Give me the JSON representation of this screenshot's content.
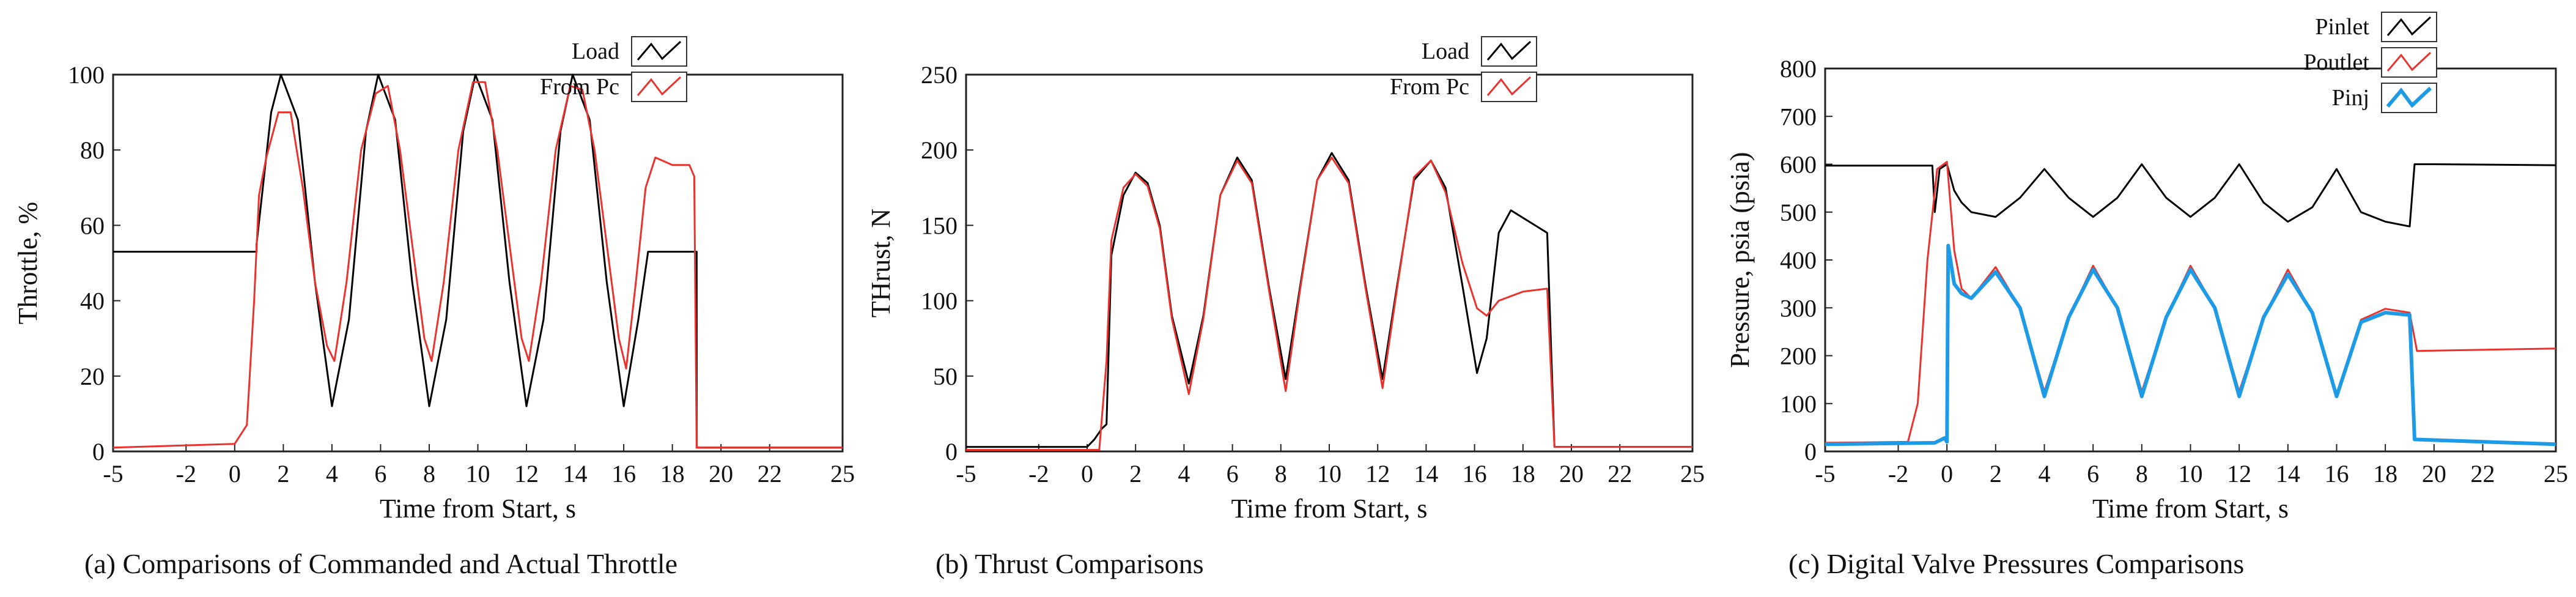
{
  "chart_data": [
    {
      "type": "line",
      "panel": "a",
      "caption": "(a) Comparisons of Commanded and Actual Throttle",
      "xlabel": "Time from  Start, s",
      "ylabel": "Throttle, %",
      "xlim": [
        -5,
        25
      ],
      "ylim": [
        0,
        100
      ],
      "xticks": [
        -5,
        -2,
        0,
        2,
        4,
        6,
        8,
        10,
        12,
        14,
        16,
        18,
        20,
        22,
        25
      ],
      "yticks": [
        0,
        20,
        40,
        60,
        80,
        100
      ],
      "legend_position": "top-right",
      "grid": false,
      "series": [
        {
          "name": "Load",
          "color": "#000000",
          "x": [
            -5,
            0.9,
            0.9,
            1.5,
            1.9,
            2.6,
            3.3,
            4.0,
            4.7,
            5.4,
            5.9,
            6.6,
            7.3,
            8.0,
            8.7,
            9.4,
            9.9,
            10.6,
            11.3,
            12.0,
            12.7,
            13.4,
            13.9,
            14.6,
            15.3,
            16.0,
            16.6,
            17.0,
            17.0,
            19.0,
            19.0,
            25
          ],
          "y": [
            53,
            53,
            55,
            90,
            100,
            88,
            45,
            12,
            35,
            85,
            100,
            88,
            45,
            12,
            35,
            85,
            100,
            88,
            45,
            12,
            35,
            85,
            100,
            88,
            45,
            12,
            35,
            53,
            53,
            53,
            1,
            1
          ]
        },
        {
          "name": "From Pc",
          "color": "#e8332f",
          "x": [
            -5,
            0.0,
            0.5,
            0.8,
            1.0,
            1.3,
            1.8,
            2.3,
            2.8,
            3.3,
            3.8,
            4.1,
            4.6,
            5.2,
            5.8,
            6.3,
            6.8,
            7.3,
            7.8,
            8.1,
            8.6,
            9.2,
            9.8,
            10.3,
            10.8,
            11.3,
            11.8,
            12.1,
            12.6,
            13.2,
            13.8,
            14.3,
            14.8,
            15.3,
            15.8,
            16.1,
            16.5,
            16.9,
            17.3,
            18.0,
            18.7,
            18.9,
            19.0,
            25
          ],
          "y": [
            1,
            2,
            7,
            40,
            68,
            78,
            90,
            90,
            70,
            45,
            28,
            24,
            45,
            80,
            95,
            97,
            80,
            55,
            30,
            24,
            45,
            80,
            98,
            98,
            80,
            55,
            30,
            24,
            45,
            80,
            97,
            96,
            80,
            55,
            30,
            22,
            45,
            70,
            78,
            76,
            76,
            73,
            1,
            1
          ]
        }
      ]
    },
    {
      "type": "line",
      "panel": "b",
      "caption": "(b) Thrust Comparisons",
      "xlabel": "Time from  Start, s",
      "ylabel": "THrust, N",
      "xlim": [
        -5,
        25
      ],
      "ylim": [
        0,
        250
      ],
      "xticks": [
        -5,
        -2,
        0,
        2,
        4,
        6,
        8,
        10,
        12,
        14,
        16,
        18,
        20,
        22,
        25
      ],
      "yticks": [
        0,
        50,
        100,
        150,
        200,
        250
      ],
      "legend_position": "top-right",
      "grid": false,
      "series": [
        {
          "name": "Load",
          "color": "#000000",
          "x": [
            -5,
            0.0,
            0.3,
            0.6,
            0.8,
            1.0,
            1.5,
            2.0,
            2.5,
            3.0,
            3.5,
            4.2,
            4.8,
            5.5,
            6.2,
            6.8,
            7.5,
            8.2,
            8.8,
            9.5,
            10.1,
            10.8,
            11.5,
            12.2,
            12.8,
            13.5,
            14.2,
            14.8,
            15.5,
            16.1,
            16.5,
            17.0,
            17.5,
            18.5,
            19.0,
            19.3,
            25
          ],
          "y": [
            3,
            3,
            8,
            15,
            18,
            130,
            170,
            185,
            178,
            150,
            90,
            45,
            90,
            170,
            195,
            180,
            110,
            48,
            110,
            180,
            198,
            180,
            110,
            48,
            110,
            180,
            193,
            175,
            110,
            52,
            75,
            145,
            160,
            150,
            145,
            3,
            3
          ]
        },
        {
          "name": "From Pc",
          "color": "#e8332f",
          "x": [
            -5,
            0.5,
            0.8,
            1.0,
            1.5,
            2.0,
            2.5,
            3.0,
            3.5,
            4.2,
            4.8,
            5.5,
            6.2,
            6.8,
            7.5,
            8.2,
            8.8,
            9.5,
            10.1,
            10.8,
            11.5,
            12.2,
            12.8,
            13.5,
            14.2,
            14.8,
            15.5,
            16.1,
            16.5,
            17.0,
            18.0,
            19.0,
            19.3,
            25
          ],
          "y": [
            1,
            1,
            60,
            140,
            175,
            184,
            176,
            148,
            88,
            38,
            88,
            170,
            193,
            178,
            108,
            40,
            108,
            180,
            195,
            178,
            108,
            42,
            108,
            182,
            193,
            172,
            125,
            95,
            90,
            100,
            106,
            108,
            3,
            3
          ]
        }
      ]
    },
    {
      "type": "line",
      "panel": "c",
      "caption": "(c) Digital Valve Pressures Comparisons",
      "xlabel": "Time from  Start, s",
      "ylabel": "Pressure, psia (psia)",
      "xlim": [
        -5,
        25
      ],
      "ylim": [
        0,
        800
      ],
      "xticks": [
        -5,
        -2,
        0,
        2,
        4,
        6,
        8,
        10,
        12,
        14,
        16,
        18,
        20,
        22,
        25
      ],
      "yticks": [
        0,
        100,
        200,
        300,
        400,
        500,
        600,
        700,
        800
      ],
      "legend_position": "top-right",
      "grid": false,
      "series": [
        {
          "name": "Pinlet",
          "color": "#000000",
          "x": [
            -5,
            -0.6,
            -0.5,
            -0.3,
            0.0,
            0.3,
            0.6,
            1.0,
            2.0,
            3.0,
            4.0,
            5.0,
            6.0,
            7.0,
            8.0,
            9.0,
            10.0,
            11.0,
            12.0,
            13.0,
            14.0,
            15.0,
            16.0,
            17.0,
            18.0,
            19.0,
            19.2,
            20.0,
            25
          ],
          "y": [
            597,
            597,
            500,
            590,
            600,
            545,
            520,
            500,
            490,
            530,
            590,
            530,
            490,
            530,
            600,
            530,
            490,
            530,
            600,
            520,
            480,
            510,
            590,
            500,
            480,
            470,
            600,
            600,
            598
          ]
        },
        {
          "name": "Poutlet",
          "color": "#e8332f",
          "x": [
            -5,
            -1.6,
            -1.2,
            -0.8,
            -0.4,
            0.0,
            0.3,
            0.6,
            1.0,
            2.0,
            3.0,
            4.0,
            5.0,
            6.0,
            7.0,
            8.0,
            9.0,
            10.0,
            11.0,
            12.0,
            13.0,
            14.0,
            15.0,
            16.0,
            17.0,
            18.0,
            19.0,
            19.3,
            25
          ],
          "y": [
            18,
            20,
            100,
            400,
            590,
            605,
            420,
            340,
            320,
            385,
            300,
            125,
            280,
            388,
            300,
            125,
            280,
            388,
            300,
            125,
            280,
            380,
            290,
            120,
            275,
            298,
            290,
            210,
            215
          ]
        },
        {
          "name": "Pinj",
          "color": "#1e9be6",
          "x": [
            -5,
            -0.5,
            -0.1,
            0.0,
            0.05,
            0.3,
            0.6,
            1.0,
            2.0,
            3.0,
            4.0,
            5.0,
            6.0,
            7.0,
            8.0,
            9.0,
            10.0,
            11.0,
            12.0,
            13.0,
            14.0,
            15.0,
            16.0,
            17.0,
            18.0,
            19.0,
            19.2,
            25
          ],
          "y": [
            15,
            18,
            28,
            20,
            430,
            350,
            330,
            320,
            375,
            300,
            115,
            280,
            380,
            300,
            115,
            280,
            380,
            300,
            115,
            280,
            370,
            290,
            115,
            270,
            290,
            285,
            25,
            15
          ]
        }
      ]
    }
  ]
}
